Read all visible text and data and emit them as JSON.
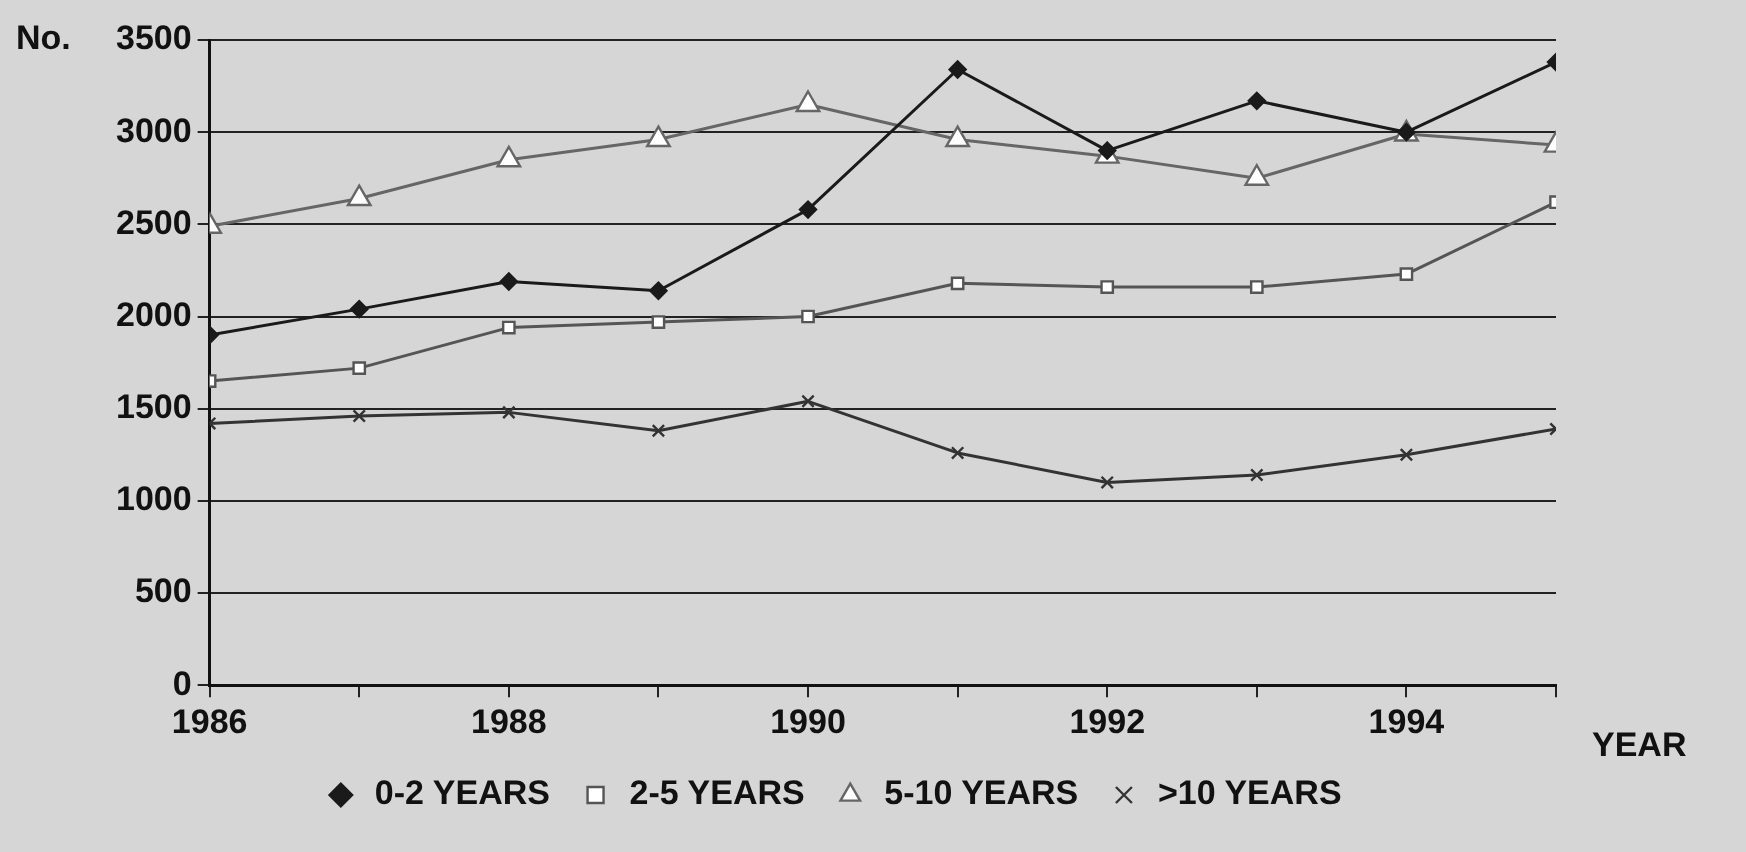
{
  "chart_data": {
    "type": "line",
    "xlabel": "YEAR",
    "ylabel": "No.",
    "x": [
      1986,
      1987,
      1988,
      1989,
      1990,
      1991,
      1992,
      1993,
      1994,
      1995
    ],
    "series": [
      {
        "name": "0-2 YEARS",
        "color": "#1a1a1a",
        "marker": "diamond",
        "values": [
          1900,
          2040,
          2190,
          2140,
          2580,
          3340,
          2900,
          3170,
          3000,
          3380
        ]
      },
      {
        "name": "2-5 YEARS",
        "color": "#555555",
        "marker": "square",
        "values": [
          1650,
          1720,
          1940,
          1970,
          2000,
          2180,
          2160,
          2160,
          2230,
          2620
        ]
      },
      {
        "name": "5-10 YEARS",
        "color": "#666666",
        "marker": "triangle",
        "values": [
          2490,
          2640,
          2850,
          2960,
          3150,
          2960,
          2870,
          2750,
          2990,
          2930
        ]
      },
      {
        "name": ">10 YEARS",
        "color": "#333333",
        "marker": "cross",
        "values": [
          1420,
          1460,
          1480,
          1380,
          1540,
          1260,
          1100,
          1140,
          1250,
          1390
        ]
      }
    ],
    "xlim": [
      1986,
      1995
    ],
    "xticks": [
      1986,
      {
        "value": 1987,
        "label": null
      },
      1988,
      {
        "value": 1989,
        "label": null
      },
      1990,
      {
        "value": 1991,
        "label": null
      },
      1992,
      {
        "value": 1993,
        "label": null
      },
      1994,
      {
        "value": 1995,
        "label": null
      }
    ],
    "ylim": [
      0,
      3500
    ],
    "yticks": [
      0,
      500,
      1000,
      1500,
      2000,
      2500,
      3000,
      3500
    ],
    "grid": "y",
    "legend": "bottom",
    "line_style": "solid"
  }
}
